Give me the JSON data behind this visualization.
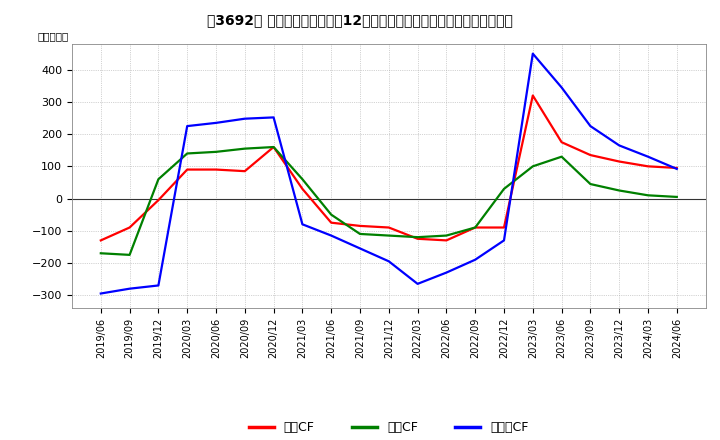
{
  "title": "　3692、キャッシュフローの12か月移動合計の対前年同期増減額の推移",
  "title_bracket": "　3692、",
  "ylabel": "（百万円）",
  "ylim": [
    -340,
    480
  ],
  "yticks": [
    -300,
    -200,
    -100,
    0,
    100,
    200,
    300,
    400
  ],
  "legend_labels": [
    "営業CF",
    "投資CF",
    "フリーCF"
  ],
  "legend_colors": [
    "#ff0000",
    "#008000",
    "#0000ff"
  ],
  "dates": [
    "2019/06",
    "2019/09",
    "2019/12",
    "2020/03",
    "2020/06",
    "2020/09",
    "2020/12",
    "2021/03",
    "2021/06",
    "2021/09",
    "2021/12",
    "2022/03",
    "2022/06",
    "2022/09",
    "2022/12",
    "2023/03",
    "2023/06",
    "2023/09",
    "2023/12",
    "2024/03",
    "2024/06"
  ],
  "eigyo_cf": [
    -130,
    -90,
    -5,
    90,
    90,
    85,
    160,
    30,
    -75,
    -85,
    -90,
    -125,
    -130,
    -90,
    -90,
    320,
    175,
    135,
    115,
    100,
    95
  ],
  "toshi_cf": [
    -170,
    -175,
    60,
    140,
    145,
    155,
    160,
    60,
    -50,
    -110,
    -115,
    -120,
    -115,
    -90,
    30,
    100,
    130,
    45,
    25,
    10,
    5
  ],
  "free_cf": [
    -295,
    -280,
    -270,
    225,
    235,
    248,
    252,
    -80,
    -115,
    -155,
    -195,
    -265,
    -230,
    -190,
    -130,
    450,
    345,
    225,
    165,
    130,
    92
  ],
  "line_width": 1.6,
  "background_color": "#ffffff",
  "grid_color": "#aaaaaa"
}
